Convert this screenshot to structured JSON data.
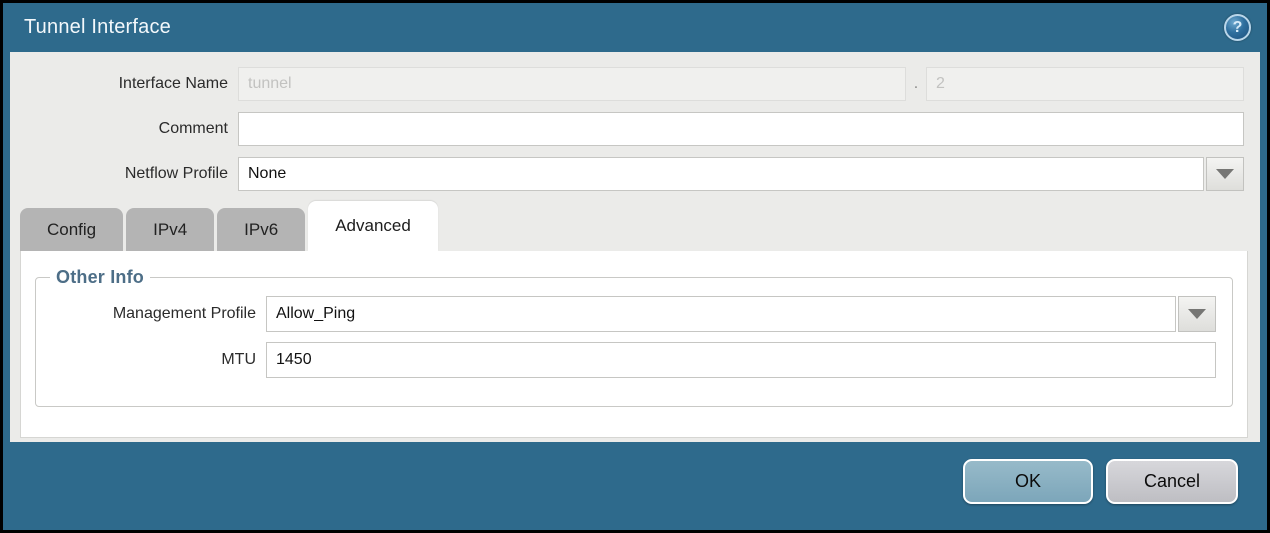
{
  "dialog": {
    "title": "Tunnel Interface",
    "help_icon": "?"
  },
  "fields": {
    "interface_name": {
      "label": "Interface Name",
      "value": "tunnel",
      "separator": ".",
      "unit_value": "2"
    },
    "comment": {
      "label": "Comment",
      "value": ""
    },
    "netflow_profile": {
      "label": "Netflow Profile",
      "value": "None"
    }
  },
  "tabs": [
    {
      "label": "Config",
      "active": false
    },
    {
      "label": "IPv4",
      "active": false
    },
    {
      "label": "IPv6",
      "active": false
    },
    {
      "label": "Advanced",
      "active": true
    }
  ],
  "advanced_panel": {
    "section_title": "Other Info",
    "management_profile": {
      "label": "Management Profile",
      "value": "Allow_Ping"
    },
    "mtu": {
      "label": "MTU",
      "value": "1450"
    }
  },
  "footer": {
    "ok_label": "OK",
    "cancel_label": "Cancel"
  },
  "colors": {
    "frame_teal": "#2e6a8c",
    "form_bg": "#ebebe9",
    "tab_inactive": "#b4b4b4",
    "legend_text": "#4d6e87",
    "ok_button": "#86adc0",
    "cancel_button": "#c9c9cd",
    "outer_border": "#000000"
  }
}
